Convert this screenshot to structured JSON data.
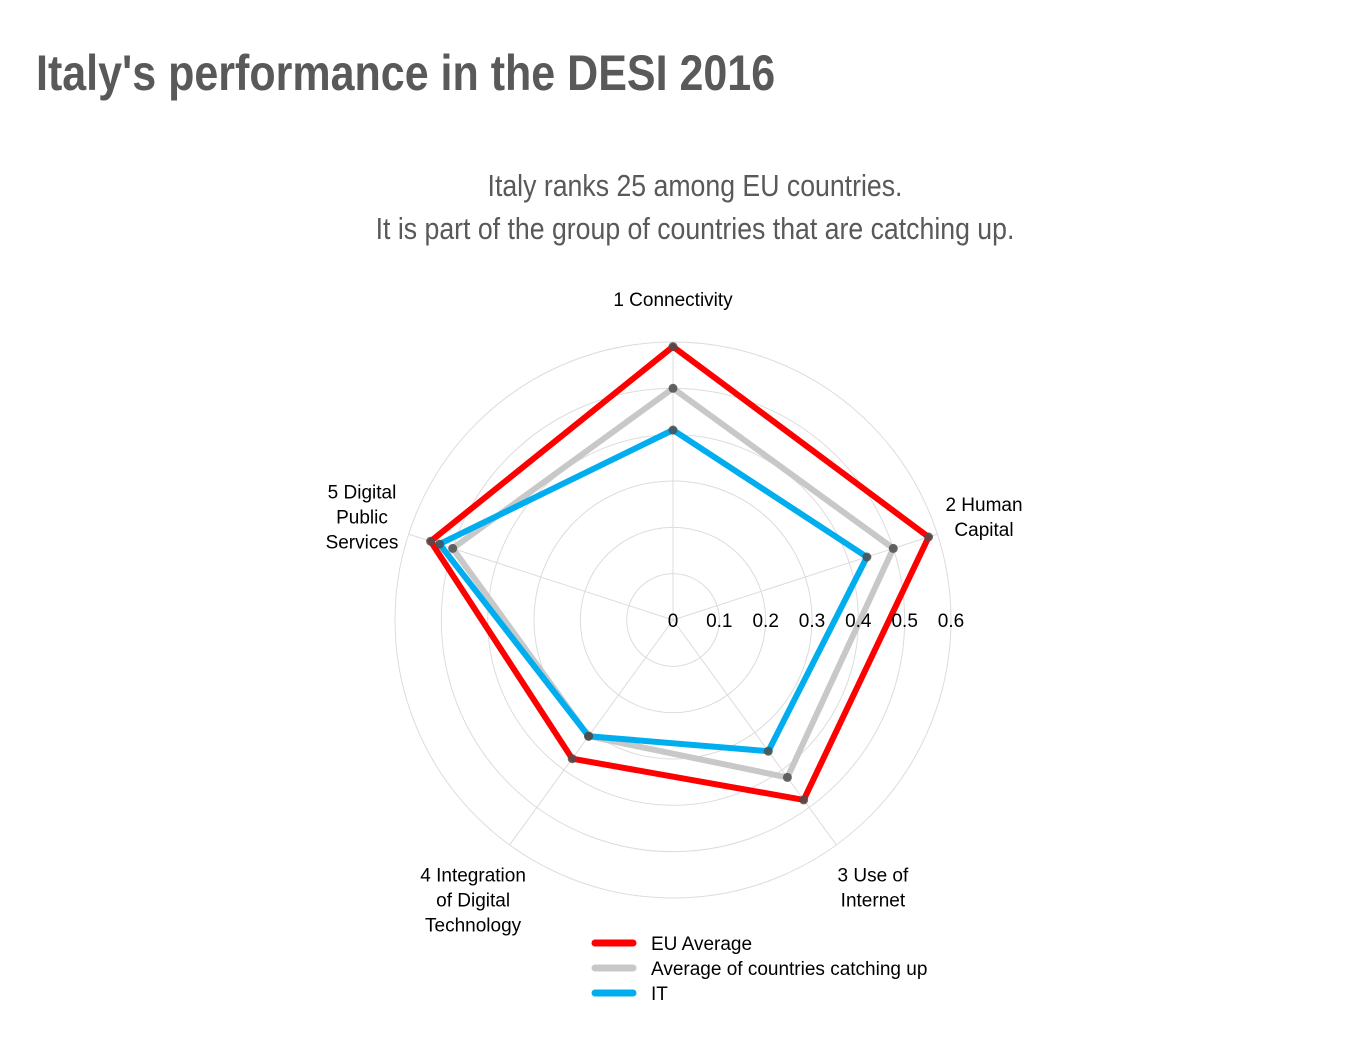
{
  "page": {
    "title": "Italy's performance in the DESI 2016",
    "subtitle_line1": "Italy ranks 25 among EU countries.",
    "subtitle_line2": "It is part of the group of countries that are catching up."
  },
  "chart_data": {
    "type": "radar",
    "categories": [
      [
        "1 Connectivity"
      ],
      [
        "2 Human",
        "Capital"
      ],
      [
        "3 Use of",
        "Internet"
      ],
      [
        "4 Integration",
        "of Digital",
        "Technology"
      ],
      [
        "5 Digital",
        "Public",
        "Services"
      ]
    ],
    "radial_ticks": [
      "0",
      "0.1",
      "0.2",
      "0.3",
      "0.4",
      "0.5",
      "0.6"
    ],
    "rlim": [
      0,
      0.6
    ],
    "grid": true,
    "legend_position": "bottom",
    "series": [
      {
        "name": "EU Average",
        "color": "#ff0000",
        "values": [
          0.59,
          0.58,
          0.48,
          0.37,
          0.55
        ]
      },
      {
        "name": "Average of countries catching up",
        "color": "#c8c8c8",
        "values": [
          0.5,
          0.5,
          0.42,
          0.31,
          0.5
        ]
      },
      {
        "name": "IT",
        "color": "#00aeef",
        "values": [
          0.41,
          0.44,
          0.35,
          0.31,
          0.53
        ]
      }
    ]
  }
}
